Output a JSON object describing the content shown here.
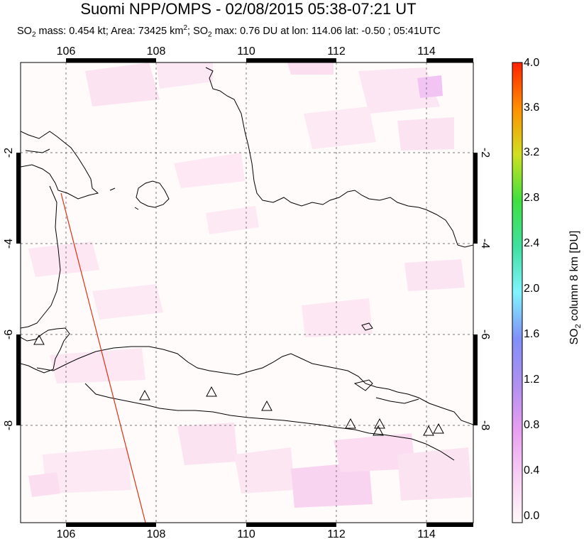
{
  "title": "Suomi NPP/OMPS - 02/08/2015 05:38-07:21 UT",
  "subtitle": {
    "so2_mass_label": "SO",
    "so2_mass_rest": " mass: 0.454 kt; Area: 73425 km",
    "area_sup": "2",
    "so2_max_label": "; SO",
    "so2_max_rest": " max: 0.76 DU at lon: 114.06 lat: -0.50 ; 05:41UTC",
    "sub2": "2"
  },
  "axes": {
    "lon_ticks": [
      "106",
      "108",
      "110",
      "112",
      "114"
    ],
    "lat_ticks": [
      "-2",
      "-4",
      "-6",
      "-8"
    ],
    "lon_range": [
      105,
      115
    ],
    "lat_range": [
      -10,
      0
    ],
    "grid": true
  },
  "colorbar": {
    "title_pre": "SO",
    "title_sub": "2",
    "title_post": " column 8 km [DU]",
    "ticks": [
      "4.0",
      "3.6",
      "3.2",
      "2.8",
      "2.4",
      "2.0",
      "1.6",
      "1.2",
      "0.8",
      "0.4",
      "0.0"
    ],
    "range": [
      0,
      4.0
    ]
  },
  "volcano_icon": "triangle-icon",
  "orbit_track_color": "#e03010"
}
